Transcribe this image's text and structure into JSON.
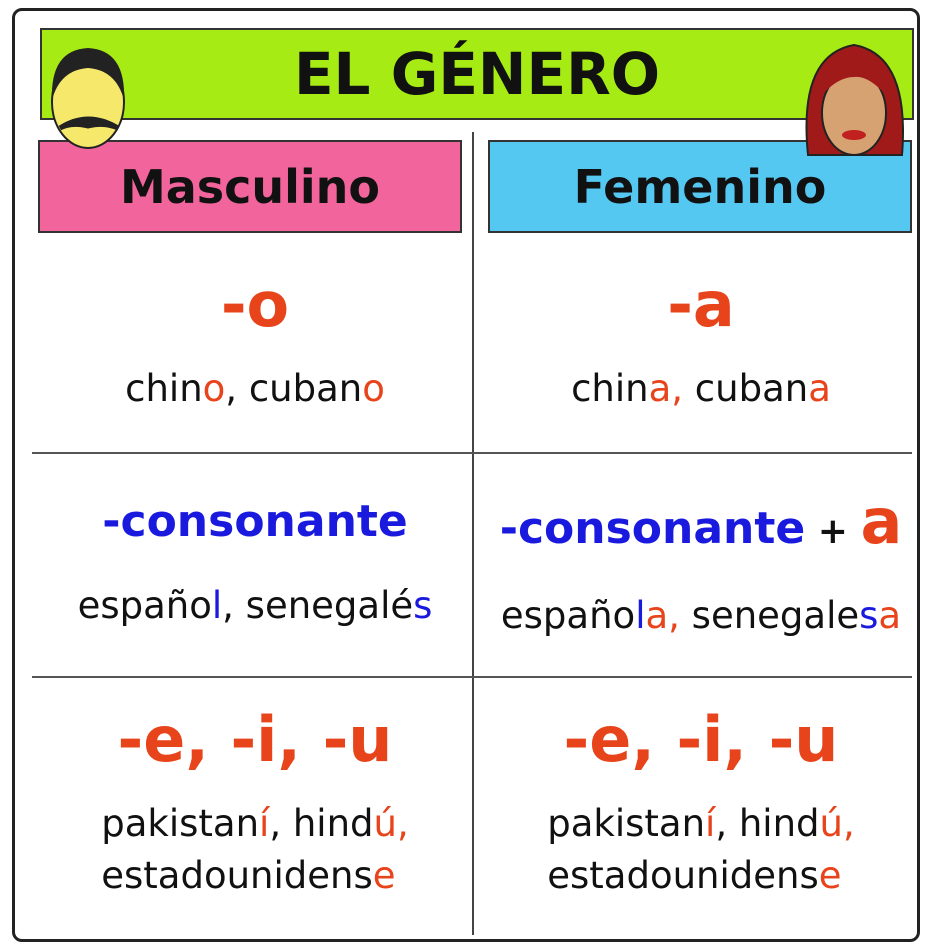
{
  "title": "EL GÉNERO",
  "headings": [
    {
      "text": "Masculino",
      "color": "#f2649c"
    },
    {
      "text": "Femenino",
      "color": "#55c8f2"
    }
  ],
  "rows": [
    {
      "cells": [
        {
          "ending": [
            {
              "text": "-o",
              "color": "#e8441c"
            }
          ],
          "examples": [
            [
              {
                "text": "chin",
                "color": "#111111"
              },
              {
                "text": "o",
                "color": "#e8441c"
              },
              {
                "text": ", cuban",
                "color": "#111111"
              },
              {
                "text": "o",
                "color": "#e8441c"
              }
            ]
          ]
        },
        {
          "ending": [
            {
              "text": "-a",
              "color": "#e8441c"
            }
          ],
          "examples": [
            [
              {
                "text": "chin",
                "color": "#111111"
              },
              {
                "text": "a,",
                "color": "#e8441c"
              },
              {
                "text": " cuban",
                "color": "#111111"
              },
              {
                "text": "a",
                "color": "#e8441c"
              }
            ]
          ]
        }
      ]
    },
    {
      "cells": [
        {
          "ending": [
            {
              "text": "-consonante",
              "color": "#1a1adf"
            }
          ],
          "examples": [
            [
              {
                "text": "españo",
                "color": "#111111"
              },
              {
                "text": "l",
                "color": "#1a1adf"
              },
              {
                "text": ", senegalé",
                "color": "#111111"
              },
              {
                "text": "s",
                "color": "#1a1adf"
              }
            ]
          ]
        },
        {
          "ending": [
            {
              "text": "-consonante",
              "color": "#1a1adf"
            },
            {
              "text": " + ",
              "color": "#111111"
            },
            {
              "text": "a",
              "color": "#e8441c"
            }
          ],
          "examples": [
            [
              {
                "text": "españo",
                "color": "#111111"
              },
              {
                "text": "l",
                "color": "#1a1adf"
              },
              {
                "text": "a,",
                "color": "#e8441c"
              },
              {
                "text": " senegale",
                "color": "#111111"
              },
              {
                "text": "s",
                "color": "#1a1adf"
              },
              {
                "text": "a",
                "color": "#e8441c"
              }
            ]
          ]
        }
      ]
    },
    {
      "cells": [
        {
          "ending": [
            {
              "text": "-e, -i, -u",
              "color": "#e8441c"
            }
          ],
          "examples": [
            [
              {
                "text": "pakistan",
                "color": "#111111"
              },
              {
                "text": "í",
                "color": "#e8441c"
              },
              {
                "text": ", hind",
                "color": "#111111"
              },
              {
                "text": "ú,",
                "color": "#e8441c"
              }
            ],
            [
              {
                "text": "estadounidens",
                "color": "#111111"
              },
              {
                "text": "e",
                "color": "#e8441c"
              }
            ]
          ]
        },
        {
          "ending": [
            {
              "text": "-e, -i, -u",
              "color": "#e8441c"
            }
          ],
          "examples": [
            [
              {
                "text": "pakistan",
                "color": "#111111"
              },
              {
                "text": "í",
                "color": "#e8441c"
              },
              {
                "text": ", hind",
                "color": "#111111"
              },
              {
                "text": "ú,",
                "color": "#e8441c"
              }
            ],
            [
              {
                "text": "estadounidens",
                "color": "#111111"
              },
              {
                "text": "e",
                "color": "#e8441c"
              }
            ]
          ]
        }
      ]
    }
  ]
}
